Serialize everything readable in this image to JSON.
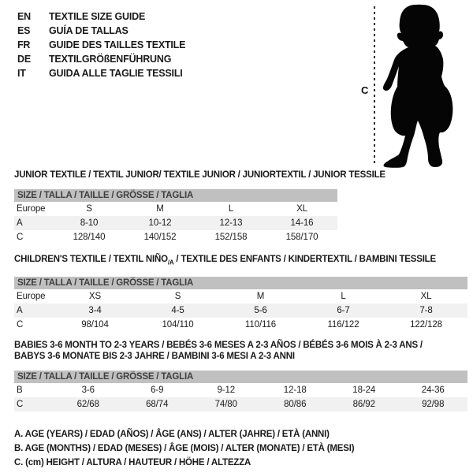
{
  "page_title": "Textile size guide",
  "languages": [
    {
      "code": "EN",
      "label": "TEXTILE SIZE GUIDE"
    },
    {
      "code": "ES",
      "label": "GUÍA DE TALLAS"
    },
    {
      "code": "FR",
      "label": "GUIDE DES TAILLES TEXTILE"
    },
    {
      "code": "DE",
      "label": "TEXTILGRÖßENFÜHRUNG"
    },
    {
      "code": "IT",
      "label": "GUIDA ALLE TAGLIE TESSILI"
    }
  ],
  "figure": {
    "label": "C",
    "image_alt": "toddler-silhouette"
  },
  "colors": {
    "header_bar": "#c0c0c0",
    "row_shade": "#f1f1f1",
    "text": "#1a1a1a",
    "bar_text": "#3f3f3f",
    "silhouette": "#050505"
  },
  "tables": [
    {
      "title_lines": [
        [
          {
            "text": "JUNIOR TEXTILE / TEXTIL JUNIOR/ TEXTILE JUNIOR / JUNIORTEXTIL / JUNIOR TESSILE"
          }
        ]
      ],
      "size_header": "SIZE / TALLA / TAILLE / GRÖSSE / TAGLIA",
      "rows": [
        {
          "label": "Europe",
          "cells": [
            "S",
            "M",
            "L",
            "XL"
          ]
        },
        {
          "label": "A",
          "cells": [
            "8-10",
            "10-12",
            "12-13",
            "14-16"
          ]
        },
        {
          "label": "C",
          "cells": [
            "128/140",
            "140/152",
            "152/158",
            "158/170"
          ]
        }
      ]
    },
    {
      "title_lines": [
        [
          {
            "text": "CHILDREN'S TEXTILE / TEXTIL NIÑO"
          },
          {
            "text": "/A",
            "sub": true
          },
          {
            "text": " / TEXTILE DES ENFANTS / KINDERTEXTIL / BAMBINI TESSILE"
          }
        ]
      ],
      "size_header": "SIZE / TALLA / TAILLE / GRÖSSE / TAGLIA",
      "rows": [
        {
          "label": "Europe",
          "cells": [
            "XS",
            "S",
            "M",
            "L",
            "XL"
          ]
        },
        {
          "label": "A",
          "cells": [
            "3-4",
            "4-5",
            "5-6",
            "6-7",
            "7-8"
          ]
        },
        {
          "label": "C",
          "cells": [
            "98/104",
            "104/110",
            "110/116",
            "116/122",
            "122/128"
          ]
        }
      ]
    },
    {
      "title_lines": [
        [
          {
            "text": "BABIES 3-6 MONTH TO 2-3 YEARS / BEBÉS 3-6 MESES A 2-3 AÑOS / BÉBÉS 3-6 MOIS À 2-3 ANS /"
          }
        ],
        [
          {
            "text": "BABYS 3-6 MONATE BIS 2-3 JAHRE / BAMBINI 3-6 MESI A 2-3 ANNI"
          }
        ]
      ],
      "size_header": "SIZE / TALLA / TAILLE / GRÖSSE / TAGLIA",
      "rows": [
        {
          "label": "B",
          "cells": [
            "3-6",
            "6-9",
            "9-12",
            "12-18",
            "18-24",
            "24-36"
          ]
        },
        {
          "label": "C",
          "cells": [
            "62/68",
            "68/74",
            "74/80",
            "80/86",
            "86/92",
            "92/98"
          ]
        }
      ]
    }
  ],
  "footnotes": [
    "A. AGE (YEARS) / EDAD (AÑOS) / ÂGE (ANS) / ALTER (JAHRE) / ETÀ (ANNI)",
    "B. AGE (MONTHS) / EDAD (MESES) / ÂGE (MOIS) / ALTER (MONATE) / ETÀ (MESI)",
    "C. (cm) HEIGHT / ALTURA / HAUTEUR / HÖHE / ALTEZZA"
  ]
}
